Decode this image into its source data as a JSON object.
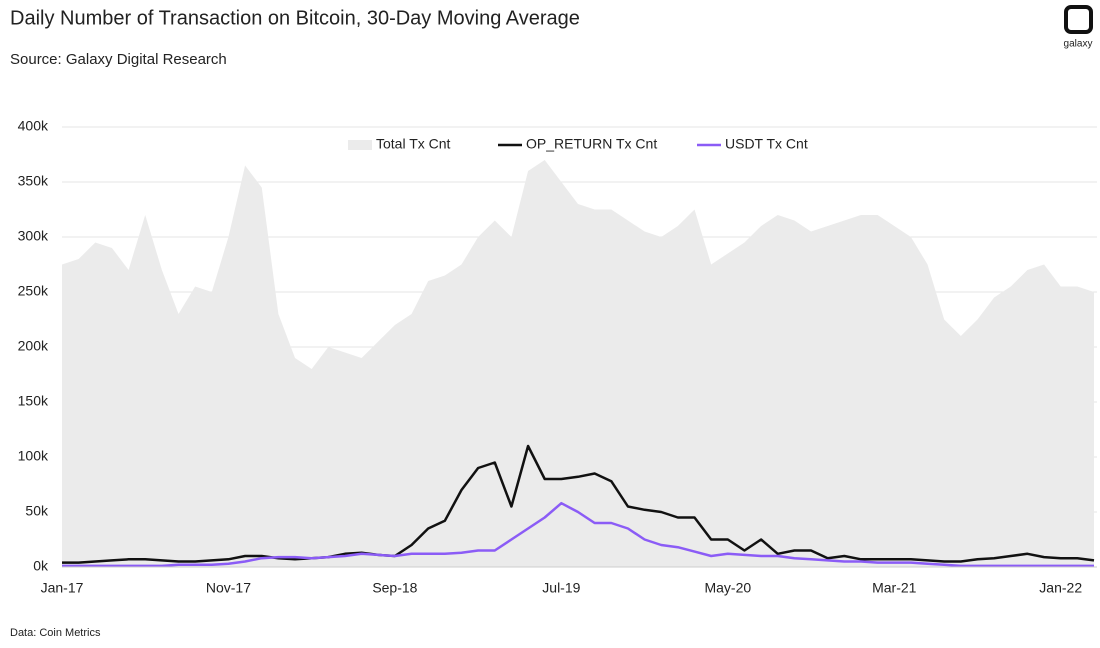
{
  "chart_data": {
    "type": "area-line",
    "title": "Daily Number of Transaction on Bitcoin, 30-Day Moving Average",
    "subtitle": "Source: Galaxy Digital Research",
    "footnote": "Data: Coin Metrics",
    "logo_text": "galaxy",
    "x": [
      "2017-01",
      "2017-02",
      "2017-03",
      "2017-04",
      "2017-05",
      "2017-06",
      "2017-07",
      "2017-08",
      "2017-09",
      "2017-10",
      "2017-11",
      "2017-12",
      "2018-01",
      "2018-02",
      "2018-03",
      "2018-04",
      "2018-05",
      "2018-06",
      "2018-07",
      "2018-08",
      "2018-09",
      "2018-10",
      "2018-11",
      "2018-12",
      "2019-01",
      "2019-02",
      "2019-03",
      "2019-04",
      "2019-05",
      "2019-06",
      "2019-07",
      "2019-08",
      "2019-09",
      "2019-10",
      "2019-11",
      "2019-12",
      "2020-01",
      "2020-02",
      "2020-03",
      "2020-04",
      "2020-05",
      "2020-06",
      "2020-07",
      "2020-08",
      "2020-09",
      "2020-10",
      "2020-11",
      "2020-12",
      "2021-01",
      "2021-02",
      "2021-03",
      "2021-04",
      "2021-05",
      "2021-06",
      "2021-07",
      "2021-08",
      "2021-09",
      "2021-10",
      "2021-11",
      "2021-12",
      "2022-01",
      "2022-02",
      "2022-03"
    ],
    "xlim": [
      "2017-01",
      "2022-03"
    ],
    "xticks": [
      {
        "value": "2017-01",
        "label": "Jan-17"
      },
      {
        "value": "2017-11",
        "label": "Nov-17"
      },
      {
        "value": "2018-09",
        "label": "Sep-18"
      },
      {
        "value": "2019-07",
        "label": "Jul-19"
      },
      {
        "value": "2020-05",
        "label": "May-20"
      },
      {
        "value": "2021-03",
        "label": "Mar-21"
      },
      {
        "value": "2022-01",
        "label": "Jan-22"
      }
    ],
    "ylim": [
      0,
      400
    ],
    "yticks": [
      {
        "value": 0,
        "label": "0k"
      },
      {
        "value": 50,
        "label": "50k"
      },
      {
        "value": 100,
        "label": "100k"
      },
      {
        "value": 150,
        "label": "150k"
      },
      {
        "value": 200,
        "label": "200k"
      },
      {
        "value": 250,
        "label": "250k"
      },
      {
        "value": 300,
        "label": "300k"
      },
      {
        "value": 350,
        "label": "350k"
      },
      {
        "value": 400,
        "label": "400k"
      }
    ],
    "grid": true,
    "legend": "top",
    "series": [
      {
        "name": "Total Tx Cnt",
        "kind": "area",
        "color": "#ebebeb",
        "values": [
          275,
          280,
          295,
          290,
          270,
          320,
          270,
          230,
          255,
          250,
          300,
          365,
          345,
          230,
          190,
          180,
          200,
          195,
          190,
          205,
          220,
          230,
          260,
          265,
          275,
          300,
          315,
          300,
          360,
          370,
          350,
          330,
          325,
          325,
          315,
          305,
          300,
          310,
          325,
          275,
          285,
          295,
          310,
          320,
          315,
          305,
          310,
          315,
          320,
          320,
          310,
          300,
          275,
          225,
          210,
          225,
          245,
          255,
          270,
          275,
          255,
          255,
          250
        ]
      },
      {
        "name": "OP_RETURN Tx Cnt",
        "kind": "line",
        "color": "#111111",
        "values": [
          4,
          4,
          5,
          6,
          7,
          7,
          6,
          5,
          5,
          6,
          7,
          10,
          10,
          8,
          7,
          8,
          9,
          12,
          13,
          11,
          10,
          20,
          35,
          42,
          70,
          90,
          95,
          55,
          110,
          80,
          80,
          82,
          85,
          78,
          55,
          52,
          50,
          45,
          45,
          25,
          25,
          15,
          25,
          12,
          15,
          15,
          8,
          10,
          7,
          7,
          7,
          7,
          6,
          5,
          5,
          7,
          8,
          10,
          12,
          9,
          8,
          8,
          6
        ]
      },
      {
        "name": "USDT Tx Cnt",
        "kind": "line",
        "color": "#8b5cf6",
        "values": [
          1,
          1,
          1,
          1,
          1,
          1,
          1,
          2,
          2,
          2,
          3,
          5,
          8,
          9,
          9,
          8,
          9,
          10,
          12,
          11,
          10,
          12,
          12,
          12,
          13,
          15,
          15,
          25,
          35,
          45,
          58,
          50,
          40,
          40,
          35,
          25,
          20,
          18,
          14,
          10,
          12,
          11,
          10,
          10,
          8,
          7,
          6,
          5,
          5,
          4,
          4,
          4,
          3,
          2,
          1,
          1,
          1,
          1,
          1,
          1,
          1,
          1,
          1
        ]
      }
    ]
  }
}
